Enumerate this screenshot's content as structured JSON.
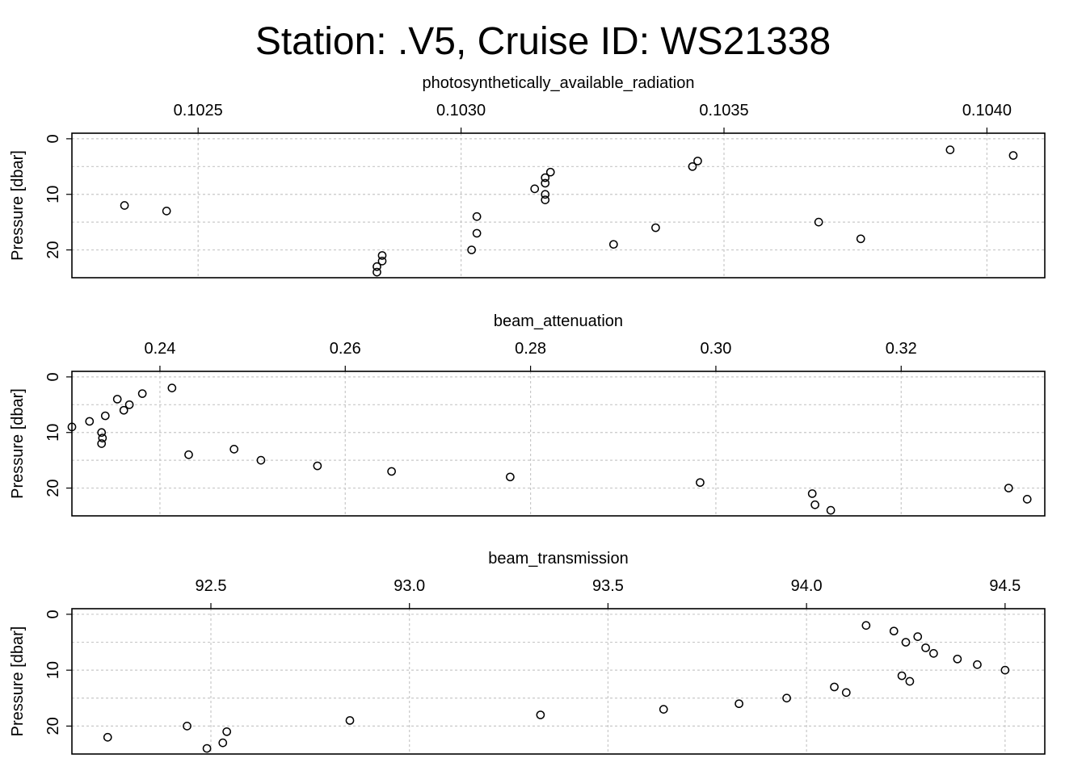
{
  "title": "Station: .V5, Cruise ID: WS21338",
  "chart_data": [
    {
      "type": "scatter",
      "title": "photosynthetically_available_radiation",
      "xlabel": "photosynthetically_available_radiation",
      "ylabel": "Pressure [dbar]",
      "xlim": [
        0.10226,
        0.10411
      ],
      "ylim": [
        25,
        -1
      ],
      "y_reversed": true,
      "grid": true,
      "x_ticks": [
        {
          "value": 0.1025,
          "label": "0.1025"
        },
        {
          "value": 0.103,
          "label": "0.1030"
        },
        {
          "value": 0.1035,
          "label": "0.1035"
        },
        {
          "value": 0.104,
          "label": "0.1040"
        }
      ],
      "y_ticks": [
        {
          "value": 0,
          "label": "0"
        },
        {
          "value": 10,
          "label": "10"
        },
        {
          "value": 20,
          "label": "20"
        }
      ],
      "x": [
        0.10393,
        0.10405,
        0.10345,
        0.10344,
        0.10317,
        0.10316,
        0.10316,
        0.10314,
        0.10316,
        0.10316,
        0.10236,
        0.10244,
        0.10303,
        0.10368,
        0.10337,
        0.10303,
        0.10376,
        0.10329,
        0.10302,
        0.10285,
        0.10285,
        0.10284,
        0.10284
      ],
      "y": [
        2,
        3,
        4,
        5,
        6,
        7,
        8,
        9,
        10,
        11,
        12,
        13,
        14,
        15,
        16,
        17,
        18,
        19,
        20,
        21,
        22,
        23,
        24
      ]
    },
    {
      "type": "scatter",
      "title": "beam_attenuation",
      "xlabel": "beam_attenuation",
      "ylabel": "Pressure [dbar]",
      "xlim": [
        0.2305,
        0.3355
      ],
      "ylim": [
        25,
        -1
      ],
      "y_reversed": true,
      "grid": true,
      "x_ticks": [
        {
          "value": 0.24,
          "label": "0.24"
        },
        {
          "value": 0.26,
          "label": "0.26"
        },
        {
          "value": 0.28,
          "label": "0.28"
        },
        {
          "value": 0.3,
          "label": "0.30"
        },
        {
          "value": 0.32,
          "label": "0.32"
        }
      ],
      "y_ticks": [
        {
          "value": 0,
          "label": "0"
        },
        {
          "value": 10,
          "label": "10"
        },
        {
          "value": 20,
          "label": "20"
        }
      ],
      "x": [
        0.2413,
        0.2381,
        0.2354,
        0.2367,
        0.2361,
        0.2341,
        0.2324,
        0.2305,
        0.2337,
        0.2338,
        0.2337,
        0.248,
        0.2431,
        0.2509,
        0.257,
        0.265,
        0.2778,
        0.2983,
        0.3316,
        0.3104,
        0.3336,
        0.3107,
        0.3124
      ],
      "y": [
        2,
        3,
        4,
        5,
        6,
        7,
        8,
        9,
        10,
        11,
        12,
        13,
        14,
        15,
        16,
        17,
        18,
        19,
        20,
        21,
        22,
        23,
        24
      ]
    },
    {
      "type": "scatter",
      "title": "beam_transmission",
      "xlabel": "beam_transmission",
      "ylabel": "Pressure [dbar]",
      "xlim": [
        92.15,
        94.6
      ],
      "ylim": [
        25,
        -1
      ],
      "y_reversed": true,
      "grid": true,
      "x_ticks": [
        {
          "value": 92.5,
          "label": "92.5"
        },
        {
          "value": 93.0,
          "label": "93.0"
        },
        {
          "value": 93.5,
          "label": "93.5"
        },
        {
          "value": 94.0,
          "label": "94.0"
        },
        {
          "value": 94.5,
          "label": "94.5"
        }
      ],
      "y_ticks": [
        {
          "value": 0,
          "label": "0"
        },
        {
          "value": 10,
          "label": "10"
        },
        {
          "value": 20,
          "label": "20"
        }
      ],
      "x": [
        94.15,
        94.22,
        94.28,
        94.25,
        94.3,
        94.32,
        94.38,
        94.43,
        94.5,
        94.24,
        94.26,
        94.07,
        94.1,
        93.95,
        93.83,
        93.64,
        93.33,
        92.85,
        92.44,
        92.54,
        92.24,
        92.53,
        92.49
      ],
      "y": [
        2,
        3,
        4,
        5,
        6,
        7,
        8,
        9,
        10,
        11,
        12,
        13,
        14,
        15,
        16,
        17,
        18,
        19,
        20,
        21,
        22,
        23,
        24
      ]
    }
  ]
}
